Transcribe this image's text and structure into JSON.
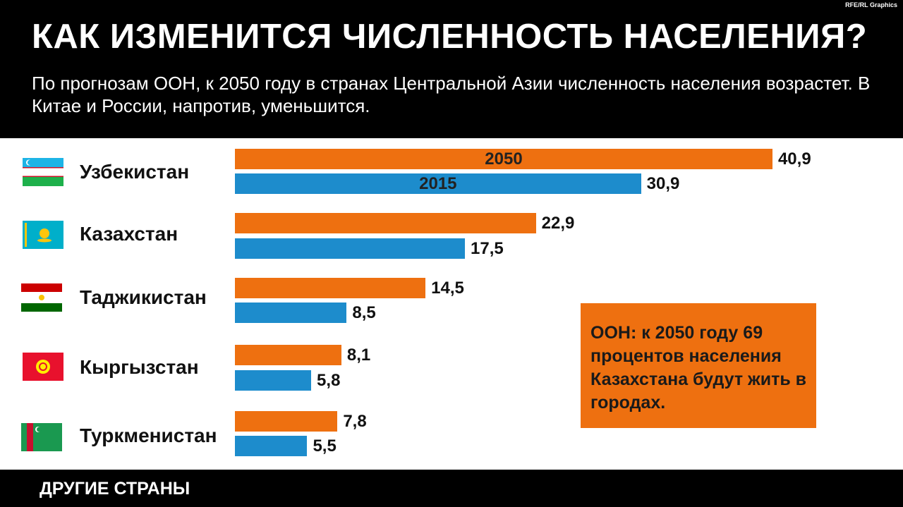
{
  "header": {
    "credit": "RFE/RL Graphics",
    "title": "КАК ИЗМЕНИТСЯ ЧИСЛЕННОСТЬ НАСЕЛЕНИЯ?",
    "subtitle": "По прогнозам ООН, к 2050 году в странах Центральной Азии численность населения возрастет. В Китае и России, напротив, уменьшится."
  },
  "colors": {
    "y2050": "#ee7010",
    "y2015": "#1d8ccc"
  },
  "chart_data": {
    "type": "bar",
    "orientation": "horizontal",
    "categories": [
      "Узбекистан",
      "Казахстан",
      "Таджикистан",
      "Кыргызстан",
      "Туркменистан"
    ],
    "series": [
      {
        "name": "2050",
        "values": [
          "40,9",
          "22,9",
          "14,5",
          "8,1",
          "7,8"
        ]
      },
      {
        "name": "2015",
        "values": [
          "30,9",
          "17,5",
          "8,5",
          "5,8",
          "5,5"
        ]
      }
    ],
    "numeric": {
      "y2050": [
        40.9,
        22.9,
        14.5,
        8.1,
        7.8
      ],
      "y2015": [
        30.9,
        17.5,
        8.5,
        5.8,
        5.5
      ]
    },
    "title": "",
    "xlabel": "",
    "ylabel": "",
    "grid": false,
    "legend": "inside first bars"
  },
  "flags": [
    "flag-uzbekistan",
    "flag-kazakhstan",
    "flag-tajikistan",
    "flag-kyrgyzstan",
    "flag-turkmenistan"
  ],
  "note": {
    "text": "ООН: к 2050 году 69 процентов населения Казахстана будут жить в городах."
  },
  "footer": {
    "label": "ДРУГИЕ СТРАНЫ"
  }
}
